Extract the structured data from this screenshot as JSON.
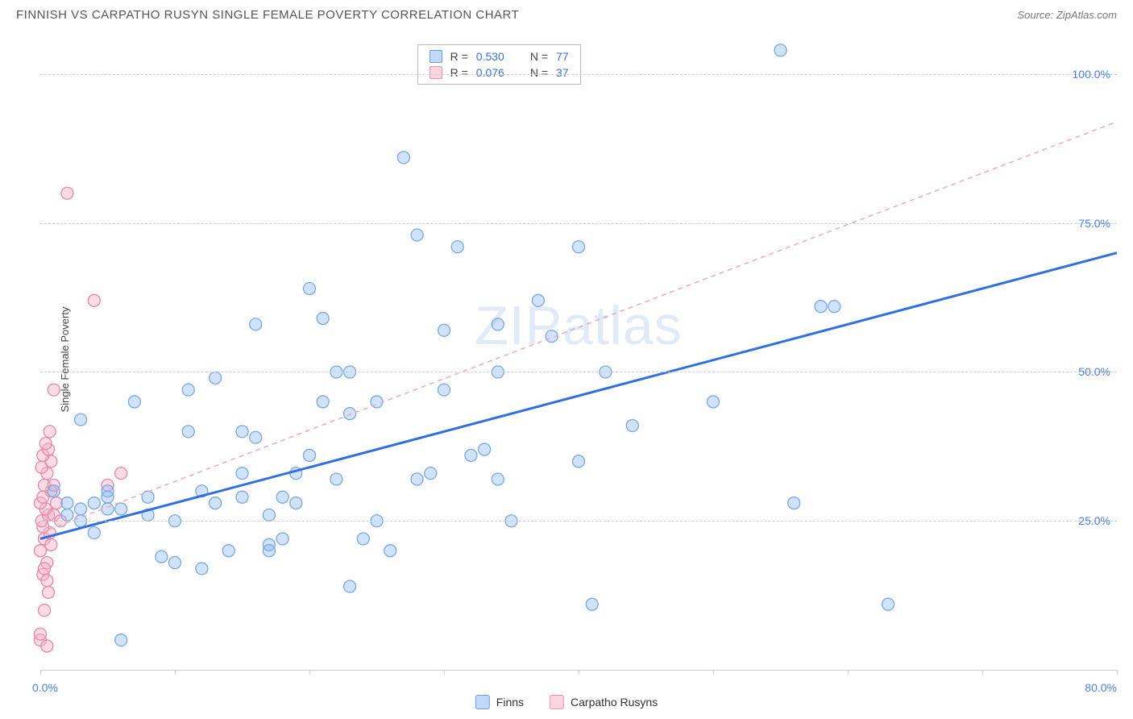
{
  "header": {
    "title": "FINNISH VS CARPATHO RUSYN SINGLE FEMALE POVERTY CORRELATION CHART",
    "source_prefix": "Source: ",
    "source_name": "ZipAtlas.com"
  },
  "chart": {
    "type": "scatter",
    "y_axis_label": "Single Female Poverty",
    "watermark": "ZIPatlas",
    "xlim": [
      0,
      80
    ],
    "ylim": [
      0,
      105
    ],
    "x_ticks": [
      0,
      10,
      20,
      30,
      40,
      50,
      60,
      70,
      80
    ],
    "x_tick_label_left": "0.0%",
    "x_tick_label_right": "80.0%",
    "y_gridlines": [
      25,
      50,
      75,
      100
    ],
    "y_tick_labels": [
      "25.0%",
      "50.0%",
      "75.0%",
      "100.0%"
    ],
    "background_color": "#ffffff",
    "grid_color": "#d0d0d0",
    "axis_line_color": "#cccccc",
    "tick_label_color": "#4a7fe8",
    "stats": [
      {
        "swatch_class": "swatch-blue",
        "r_label": "R =",
        "r_value": "0.530",
        "n_label": "N =",
        "n_value": "77"
      },
      {
        "swatch_class": "swatch-pink",
        "r_label": "R =",
        "r_value": "0.076",
        "n_label": "N =",
        "n_value": "37"
      }
    ],
    "legend": [
      {
        "label": "Finns",
        "fill": "rgba(120,170,240,0.45)",
        "stroke": "#6a9be0"
      },
      {
        "label": "Carpatho Rusyns",
        "fill": "rgba(245,160,185,0.45)",
        "stroke": "#e895b0"
      }
    ],
    "series": {
      "finns": {
        "marker_color_fill": "rgba(140,185,245,0.40)",
        "marker_color_stroke": "#7aa8e0",
        "marker_radius": 7.5,
        "regression": {
          "x1": 0,
          "y1": 22,
          "x2": 80,
          "y2": 70,
          "stroke": "#2f6fe0",
          "width": 3,
          "dash": "none"
        },
        "points": [
          [
            2,
            26
          ],
          [
            2,
            28
          ],
          [
            3,
            27
          ],
          [
            3,
            25
          ],
          [
            4,
            28
          ],
          [
            4,
            23
          ],
          [
            5,
            30
          ],
          [
            5,
            27
          ],
          [
            5,
            29
          ],
          [
            6,
            27
          ],
          [
            3,
            42
          ],
          [
            1,
            30
          ],
          [
            6,
            5
          ],
          [
            7,
            45
          ],
          [
            8,
            29
          ],
          [
            8,
            26
          ],
          [
            9,
            19
          ],
          [
            10,
            25
          ],
          [
            10,
            18
          ],
          [
            11,
            40
          ],
          [
            11,
            47
          ],
          [
            12,
            30
          ],
          [
            12,
            17
          ],
          [
            13,
            49
          ],
          [
            13,
            28
          ],
          [
            14,
            20
          ],
          [
            15,
            33
          ],
          [
            15,
            29
          ],
          [
            15,
            40
          ],
          [
            16,
            39
          ],
          [
            17,
            21
          ],
          [
            17,
            26
          ],
          [
            17,
            20
          ],
          [
            18,
            22
          ],
          [
            18,
            29
          ],
          [
            19,
            28
          ],
          [
            16,
            58
          ],
          [
            19,
            33
          ],
          [
            20,
            36
          ],
          [
            20,
            64
          ],
          [
            21,
            59
          ],
          [
            21,
            45
          ],
          [
            22,
            50
          ],
          [
            22,
            32
          ],
          [
            23,
            43
          ],
          [
            23,
            14
          ],
          [
            24,
            22
          ],
          [
            23,
            50
          ],
          [
            25,
            25
          ],
          [
            25,
            45
          ],
          [
            26,
            20
          ],
          [
            27,
            86
          ],
          [
            28,
            32
          ],
          [
            28,
            73
          ],
          [
            29,
            33
          ],
          [
            30,
            57
          ],
          [
            30,
            47
          ],
          [
            31,
            71
          ],
          [
            32,
            36
          ],
          [
            33,
            37
          ],
          [
            34,
            32
          ],
          [
            34,
            50
          ],
          [
            34,
            58
          ],
          [
            35,
            25
          ],
          [
            37,
            62
          ],
          [
            38,
            56
          ],
          [
            40,
            35
          ],
          [
            40,
            71
          ],
          [
            41,
            11
          ],
          [
            42,
            50
          ],
          [
            44,
            41
          ],
          [
            50,
            45
          ],
          [
            55,
            104
          ],
          [
            56,
            28
          ],
          [
            58,
            61
          ],
          [
            59,
            61
          ],
          [
            63,
            11
          ]
        ]
      },
      "rusyns": {
        "marker_color_fill": "rgba(250,175,200,0.45)",
        "marker_color_stroke": "#e08aa8",
        "marker_radius": 7.5,
        "regression": {
          "x1": 0,
          "y1": 23,
          "x2": 80,
          "y2": 92,
          "stroke": "#f0a8c0",
          "width": 1.5,
          "dash": "6,5"
        },
        "points": [
          [
            0,
            5
          ],
          [
            0,
            6
          ],
          [
            0.5,
            4
          ],
          [
            0.3,
            10
          ],
          [
            0.2,
            16
          ],
          [
            0.5,
            18
          ],
          [
            0,
            20
          ],
          [
            0.3,
            22
          ],
          [
            0.8,
            21
          ],
          [
            0.7,
            23
          ],
          [
            0.2,
            24
          ],
          [
            0.1,
            25
          ],
          [
            0.6,
            26
          ],
          [
            0.4,
            27
          ],
          [
            0,
            28
          ],
          [
            0.2,
            29
          ],
          [
            0.8,
            30
          ],
          [
            0.3,
            31
          ],
          [
            0.5,
            33
          ],
          [
            0.1,
            34
          ],
          [
            0.8,
            35
          ],
          [
            0.2,
            36
          ],
          [
            0.6,
            37
          ],
          [
            0.4,
            38
          ],
          [
            0.7,
            40
          ],
          [
            1,
            31
          ],
          [
            0.3,
            17
          ],
          [
            0.5,
            15
          ],
          [
            0.6,
            13
          ],
          [
            1,
            26
          ],
          [
            1,
            47
          ],
          [
            1.5,
            25
          ],
          [
            2,
            80
          ],
          [
            1.2,
            28
          ],
          [
            4,
            62
          ],
          [
            5,
            31
          ],
          [
            6,
            33
          ]
        ]
      }
    }
  }
}
